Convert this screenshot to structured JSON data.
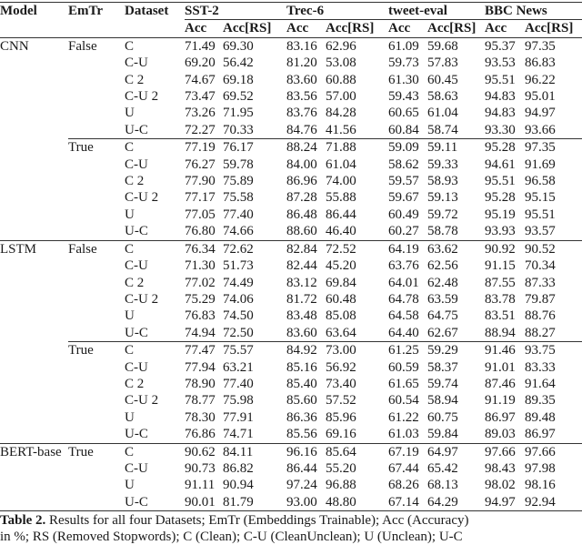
{
  "header": {
    "model": "Model",
    "emtr": "EmTr",
    "dataset": "Dataset",
    "groups": [
      "SST-2",
      "Trec-6",
      "tweet-eval",
      "BBC News"
    ],
    "sub": [
      "Acc",
      "Acc[RS]"
    ]
  },
  "blocks": [
    {
      "model": "CNN",
      "emtr": "False",
      "rows": [
        [
          "C",
          "71.49",
          "69.30",
          "83.16",
          "62.96",
          "61.09",
          "59.68",
          "95.37",
          "97.35"
        ],
        [
          "C-U",
          "69.20",
          "56.42",
          "81.20",
          "53.08",
          "59.73",
          "57.83",
          "93.53",
          "86.83"
        ],
        [
          "C 2",
          "74.67",
          "69.18",
          "83.60",
          "60.88",
          "61.30",
          "60.45",
          "95.51",
          "96.22"
        ],
        [
          "C-U 2",
          "73.47",
          "69.52",
          "83.56",
          "57.00",
          "59.43",
          "58.63",
          "94.83",
          "95.01"
        ],
        [
          "U",
          "73.26",
          "71.95",
          "83.76",
          "84.28",
          "60.65",
          "61.04",
          "94.83",
          "94.97"
        ],
        [
          "U-C",
          "72.27",
          "70.33",
          "84.76",
          "41.56",
          "60.84",
          "58.74",
          "93.30",
          "93.66"
        ]
      ]
    },
    {
      "model": "",
      "emtr": "True",
      "rows": [
        [
          "C",
          "77.19",
          "76.17",
          "88.24",
          "71.88",
          "59.09",
          "59.11",
          "95.28",
          "97.35"
        ],
        [
          "C-U",
          "76.27",
          "59.78",
          "84.00",
          "61.04",
          "58.62",
          "59.33",
          "94.61",
          "91.69"
        ],
        [
          "C 2",
          "77.90",
          "75.89",
          "86.96",
          "74.00",
          "59.57",
          "58.93",
          "95.51",
          "96.58"
        ],
        [
          "C-U 2",
          "77.17",
          "75.58",
          "87.28",
          "55.88",
          "59.67",
          "59.13",
          "95.28",
          "95.15"
        ],
        [
          "U",
          "77.05",
          "77.40",
          "86.48",
          "86.44",
          "60.49",
          "59.72",
          "95.19",
          "95.51"
        ],
        [
          "U-C",
          "76.80",
          "74.66",
          "88.60",
          "46.40",
          "60.27",
          "58.78",
          "93.93",
          "93.57"
        ]
      ]
    },
    {
      "model": "LSTM",
      "emtr": "False",
      "rows": [
        [
          "C",
          "76.34",
          "72.62",
          "82.84",
          "72.52",
          "64.19",
          "63.62",
          "90.92",
          "90.52"
        ],
        [
          "C-U",
          "71.30",
          "51.73",
          "82.44",
          "45.20",
          "63.76",
          "62.56",
          "91.15",
          "70.34"
        ],
        [
          "C 2",
          "77.02",
          "74.49",
          "83.12",
          "69.84",
          "64.01",
          "62.48",
          "87.55",
          "87.33"
        ],
        [
          "C-U 2",
          "75.29",
          "74.06",
          "81.72",
          "60.48",
          "64.78",
          "63.59",
          "83.78",
          "79.87"
        ],
        [
          "U",
          "76.83",
          "74.50",
          "83.48",
          "85.08",
          "64.58",
          "64.75",
          "83.51",
          "88.76"
        ],
        [
          "U-C",
          "74.94",
          "72.50",
          "83.60",
          "63.64",
          "64.40",
          "62.67",
          "88.94",
          "88.27"
        ]
      ]
    },
    {
      "model": "",
      "emtr": "True",
      "rows": [
        [
          "C",
          "77.47",
          "75.57",
          "84.92",
          "73.00",
          "61.25",
          "59.29",
          "91.46",
          "93.75"
        ],
        [
          "C-U",
          "77.94",
          "63.21",
          "85.16",
          "56.92",
          "60.59",
          "58.37",
          "91.01",
          "83.33"
        ],
        [
          "C 2",
          "78.90",
          "77.40",
          "85.40",
          "73.40",
          "61.65",
          "59.74",
          "87.46",
          "91.64"
        ],
        [
          "C-U 2",
          "78.77",
          "75.98",
          "85.60",
          "57.52",
          "60.54",
          "58.94",
          "91.19",
          "89.35"
        ],
        [
          "U",
          "78.30",
          "77.91",
          "86.36",
          "85.96",
          "61.22",
          "60.75",
          "86.97",
          "89.48"
        ],
        [
          "U-C",
          "76.86",
          "74.71",
          "85.56",
          "69.16",
          "61.03",
          "59.84",
          "89.03",
          "86.97"
        ]
      ]
    },
    {
      "model": "BERT-base",
      "emtr": "True",
      "rows": [
        [
          "C",
          "90.62",
          "84.11",
          "96.16",
          "85.64",
          "67.19",
          "64.97",
          "97.66",
          "97.66"
        ],
        [
          "C-U",
          "90.73",
          "86.82",
          "86.44",
          "55.20",
          "67.44",
          "65.42",
          "98.43",
          "97.98"
        ],
        [
          "U",
          "91.11",
          "90.94",
          "97.24",
          "96.88",
          "68.26",
          "68.13",
          "98.02",
          "98.16"
        ],
        [
          "U-C",
          "90.01",
          "81.79",
          "93.00",
          "48.80",
          "67.14",
          "64.29",
          "94.97",
          "92.94"
        ]
      ]
    }
  ],
  "caption": {
    "label": "Table 2.",
    "line1": " Results for all four Datasets; EmTr (Embeddings Trainable); Acc (Accuracy)",
    "line2": "in %; RS (Removed Stopwords); C (Clean); C-U (CleanUnclean); U (Unclean); U-C"
  }
}
